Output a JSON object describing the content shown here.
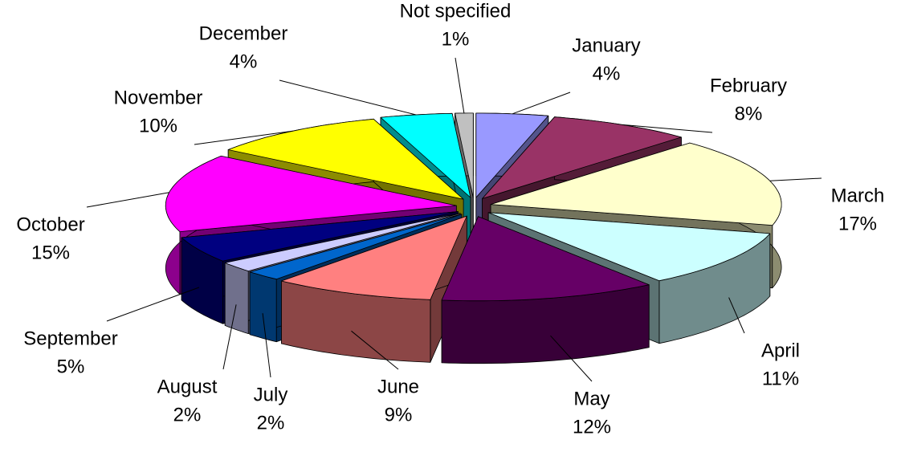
{
  "chart_data": {
    "type": "pie3d",
    "categories": [
      "January",
      "February",
      "March",
      "April",
      "May",
      "June",
      "July",
      "August",
      "September",
      "October",
      "November",
      "December",
      "Not specified"
    ],
    "values": [
      4,
      8,
      17,
      11,
      12,
      9,
      2,
      2,
      5,
      15,
      10,
      4,
      1
    ],
    "value_labels": [
      "4%",
      "8%",
      "17%",
      "11%",
      "12%",
      "9%",
      "2%",
      "2%",
      "5%",
      "15%",
      "10%",
      "4%",
      "1%"
    ],
    "colors": [
      "#9999ff",
      "#993366",
      "#ffffcc",
      "#ccffff",
      "#660066",
      "#ff8080",
      "#0066cc",
      "#ccccff",
      "#000080",
      "#ff00ff",
      "#ffff00",
      "#00ffff",
      "#c0c0c0"
    ]
  }
}
